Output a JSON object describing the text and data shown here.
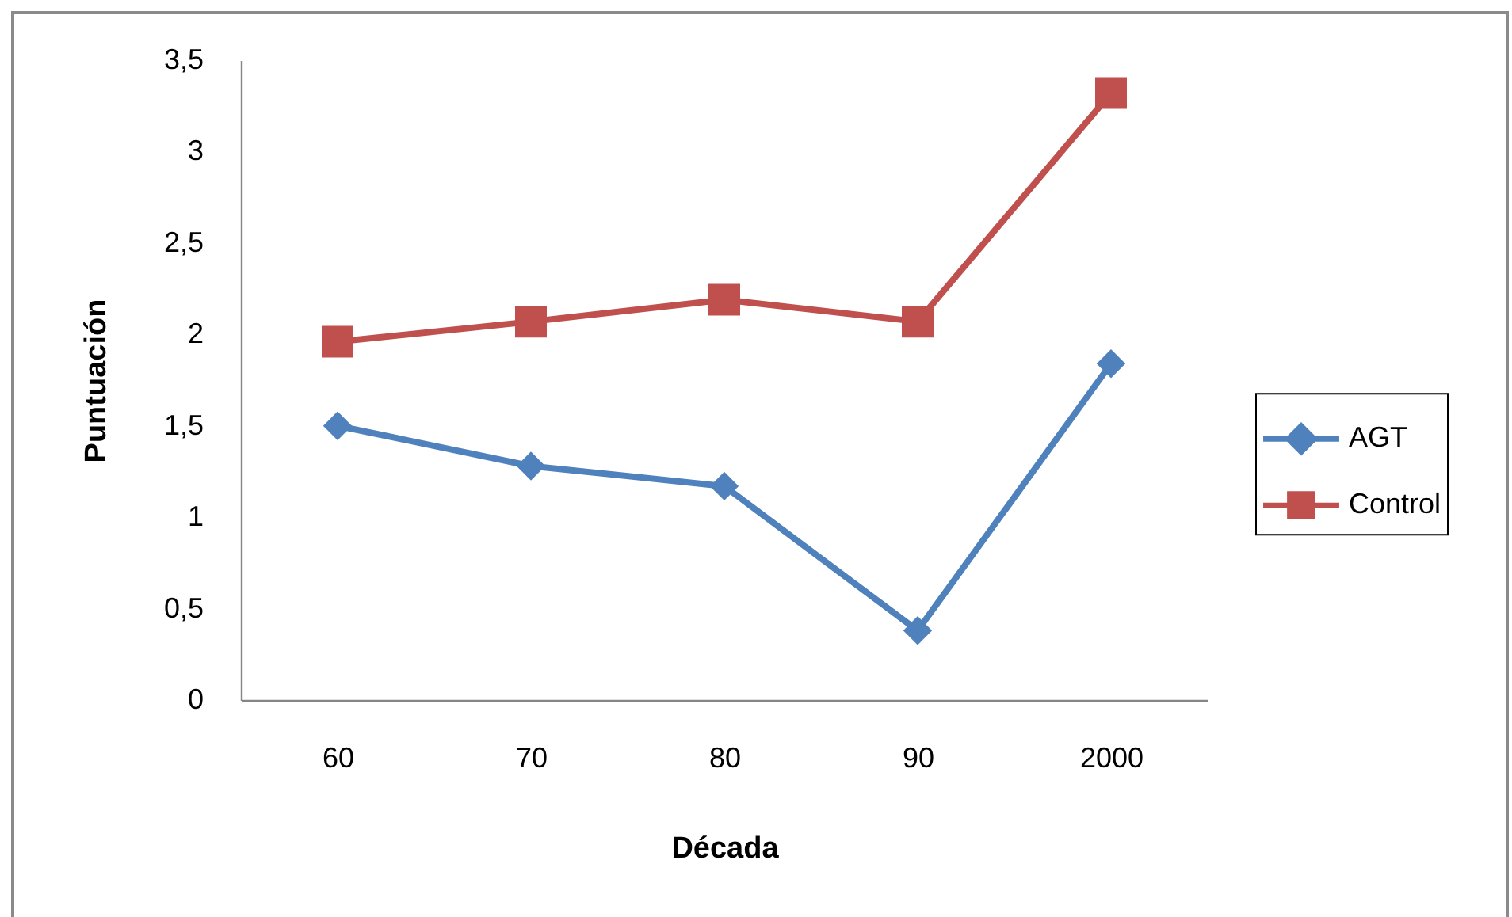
{
  "chart_data": {
    "type": "line",
    "xlabel": "Década",
    "ylabel": "Puntuación",
    "categories": [
      "60",
      "70",
      "80",
      "90",
      "2000"
    ],
    "series": [
      {
        "name": "AGT",
        "color": "#4f81bd",
        "marker": "diamond",
        "values": [
          1.5,
          1.28,
          1.17,
          0.38,
          1.84
        ]
      },
      {
        "name": "Control",
        "color": "#c0504d",
        "marker": "square",
        "values": [
          1.96,
          2.07,
          2.19,
          2.07,
          3.32
        ]
      }
    ],
    "ylim": [
      0,
      3.5
    ],
    "yticks": [
      0,
      {
        "value": 0.5,
        "label": "0,5"
      },
      1,
      {
        "value": 1.5,
        "label": "1,5"
      },
      2,
      {
        "value": 2.5,
        "label": "2,5"
      },
      3,
      {
        "value": 3.5,
        "label": "3,5"
      }
    ],
    "legend": "right",
    "line_style": "solid"
  }
}
